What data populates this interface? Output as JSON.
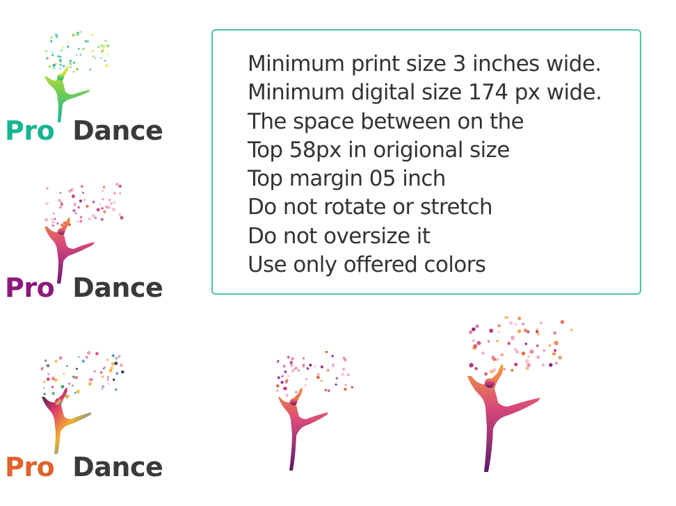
{
  "colors": {
    "teal": "#14b592",
    "purple": "#8b1a7c",
    "orange": "#e0622b",
    "dark_gray": "#3a3a3a",
    "box_border": "#4cc1a6"
  },
  "logos": [
    {
      "variant": "teal-gradient",
      "pro": "Pro",
      "dance": "Dance",
      "pro_color": "#14b592",
      "icon": "ballerina-icon"
    },
    {
      "variant": "purple-watercolor",
      "pro": "Pro",
      "dance": "Dance",
      "pro_color": "#8b1a7c",
      "icon": "ballerina-icon"
    },
    {
      "variant": "multicolor-mosaic",
      "pro": "Pro",
      "dance": "Dance",
      "pro_color": "#e0622b",
      "icon": "ballerina-icon"
    }
  ],
  "icon_only": [
    {
      "variant": "small",
      "icon": "ballerina-icon"
    },
    {
      "variant": "large",
      "icon": "ballerina-icon"
    }
  ],
  "guidelines": {
    "lines": [
      "Minimum print size 3 inches wide.",
      "Minimum digital size 174 px wide.",
      "The space between on the",
      "Top 58px in origional size",
      "Top margin 05 inch",
      "Do not rotate or stretch",
      "Do not oversize it",
      "Use only offered colors"
    ]
  }
}
